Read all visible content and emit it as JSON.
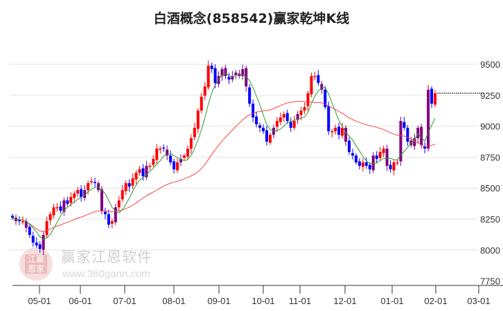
{
  "chart_data": {
    "type": "candlestick",
    "title": "白酒概念(858542)赢家乾坤K线",
    "x_tick_labels": [
      "05-01",
      "06-01",
      "07-01",
      "08-01",
      "09-01",
      "10-01",
      "11-01",
      "12-01",
      "01-01",
      "02-01",
      "03-01"
    ],
    "y_tick_labels": [
      "9500",
      "9250",
      "9000",
      "8750",
      "8500",
      "8250",
      "8000",
      "7750"
    ],
    "ylim": [
      7750,
      9650
    ],
    "last_price": 9266,
    "ma_periods": [
      6,
      30
    ],
    "colors": {
      "up": "#ff0000",
      "down": "#0000ff",
      "cross": "#800080",
      "ma_short": "#2e9a2e",
      "ma_long": "#ff4040",
      "grid": "#e3e3e3"
    },
    "close": [
      8261,
      8233,
      8240,
      8233,
      8180,
      8122,
      8060,
      8038,
      8010,
      8122,
      8233,
      8289,
      8345,
      8345,
      8317,
      8401,
      8373,
      8429,
      8457,
      8484,
      8429,
      8484,
      8540,
      8557,
      8540,
      8484,
      8317,
      8289,
      8205,
      8233,
      8345,
      8401,
      8484,
      8540,
      8512,
      8579,
      8624,
      8652,
      8596,
      8680,
      8680,
      8736,
      8819,
      8819,
      8819,
      8763,
      8708,
      8652,
      8708,
      8736,
      8763,
      8819,
      8903,
      8987,
      9126,
      9238,
      9321,
      9489,
      9461,
      9349,
      9405,
      9461,
      9405,
      9377,
      9405,
      9433,
      9405,
      9461,
      9321,
      9182,
      9070,
      9015,
      8987,
      8959,
      8875,
      8931,
      8987,
      9042,
      9070,
      9098,
      9042,
      8987,
      9042,
      9098,
      9126,
      9154,
      9266,
      9405,
      9405,
      9349,
      9294,
      9154,
      8959,
      8959,
      8987,
      8931,
      8987,
      8875,
      8791,
      8763,
      8708,
      8680,
      8708,
      8680,
      8652,
      8763,
      8736,
      8791,
      8819,
      8680,
      8652,
      8708,
      8708,
      9042,
      8987,
      8875,
      8847,
      8903,
      8987,
      8847,
      8819,
      9294,
      9182,
      9266
    ]
  },
  "watermark": {
    "brand": "赢家江恩软件",
    "url": "www.360gann.com",
    "seal": "江赢恩家"
  }
}
